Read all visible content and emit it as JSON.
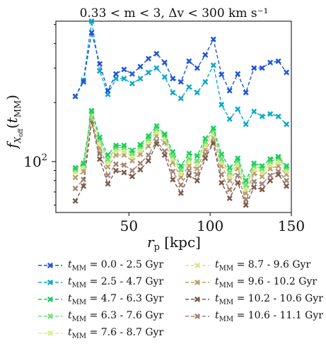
{
  "chart_data": {
    "type": "line",
    "title": "0.33 <  m  < 3, Δv < 300 km s⁻¹",
    "xlabel": "r_p [kpc]",
    "ylabel": "f_X_off(t_MM)",
    "xlim": [
      5,
      150
    ],
    "ylim": [
      55,
      520
    ],
    "yscale": "log",
    "xticks": [
      50,
      100,
      150
    ],
    "ytick_major": 100,
    "ytick_minor": [
      60,
      70,
      80,
      90,
      200,
      300,
      400,
      500
    ],
    "grid": false,
    "legend_position": "below",
    "x": [
      17,
      22,
      27,
      32,
      37,
      42,
      47,
      52,
      57,
      62,
      67,
      72,
      77,
      82,
      87,
      92,
      97,
      102,
      107,
      112,
      117,
      122,
      127,
      132,
      137,
      142,
      147
    ],
    "series": [
      {
        "name": "t_MM = 0.0 - 2.5 Gyr",
        "color": "#1f55d6",
        "values": [
          215,
          255,
          455,
          315,
          230,
          280,
          295,
          280,
          305,
          335,
          355,
          320,
          265,
          255,
          325,
          300,
          350,
          420,
          278,
          230,
          280,
          225,
          300,
          300,
          320,
          325,
          285
        ]
      },
      {
        "name": "t_MM = 2.5 - 4.7 Gyr",
        "color": "#09a9c7",
        "values": [
          215,
          260,
          520,
          290,
          220,
          265,
          265,
          250,
          265,
          285,
          300,
          270,
          225,
          210,
          240,
          225,
          255,
          310,
          195,
          165,
          185,
          155,
          180,
          170,
          175,
          170,
          155
        ]
      },
      {
        "name": "t_MM = 4.7 - 6.3 Gyr",
        "color": "#18cf5c",
        "values": [
          93,
          98,
          182,
          133,
          108,
          121,
          121,
          114,
          122,
          135,
          152,
          138,
          112,
          95,
          110,
          107,
          131,
          148,
          109,
          93,
          104,
          80,
          98,
          95,
          103,
          106,
          95
        ]
      },
      {
        "name": "t_MM = 6.3 - 7.6 Gyr",
        "color": "#6fe07a",
        "values": [
          91,
          97,
          180,
          129,
          103,
          118,
          118,
          110,
          119,
          131,
          147,
          136,
          107,
          91,
          104,
          101,
          126,
          144,
          103,
          88,
          101,
          76,
          95,
          92,
          100,
          104,
          93
        ]
      },
      {
        "name": "t_MM = 7.6 - 8.7 Gyr",
        "color": "#d5f08a",
        "values": [
          90,
          96,
          178,
          126,
          101,
          116,
          115,
          108,
          116,
          128,
          144,
          134,
          105,
          89,
          102,
          99,
          123,
          141,
          101,
          86,
          98,
          74,
          93,
          90,
          98,
          101,
          91
        ]
      },
      {
        "name": "t_MM = 8.7 - 9.6 Gyr",
        "color": "#e3df8c",
        "values": [
          88,
          94,
          174,
          123,
          99,
          114,
          113,
          106,
          114,
          126,
          141,
          131,
          103,
          87,
          100,
          97,
          120,
          138,
          99,
          84,
          96,
          72,
          91,
          88,
          96,
          99,
          89
        ]
      },
      {
        "name": "t_MM = 9.6 - 10.2 Gyr",
        "color": "#b9a06e",
        "values": [
          83,
          89,
          165,
          117,
          94,
          108,
          108,
          101,
          109,
          120,
          135,
          125,
          99,
          83,
          95,
          92,
          115,
          132,
          95,
          80,
          92,
          69,
          87,
          84,
          92,
          95,
          86
        ]
      },
      {
        "name": "t_MM = 10.2 - 10.6 Gyr",
        "color": "#7f5a48",
        "values": [
          63,
          75,
          160,
          103,
          77,
          90,
          88,
          84,
          91,
          101,
          123,
          108,
          81,
          69,
          85,
          80,
          104,
          124,
          78,
          65,
          78,
          60,
          74,
          72,
          80,
          86,
          75
        ]
      },
      {
        "name": "t_MM = 10.6 - 11.1 Gyr",
        "color": "#a0857a",
        "values": [
          73,
          81,
          162,
          110,
          85,
          97,
          96,
          90,
          98,
          108,
          127,
          113,
          89,
          76,
          90,
          86,
          109,
          126,
          86,
          72,
          85,
          64,
          79,
          77,
          85,
          89,
          80
        ]
      }
    ]
  }
}
